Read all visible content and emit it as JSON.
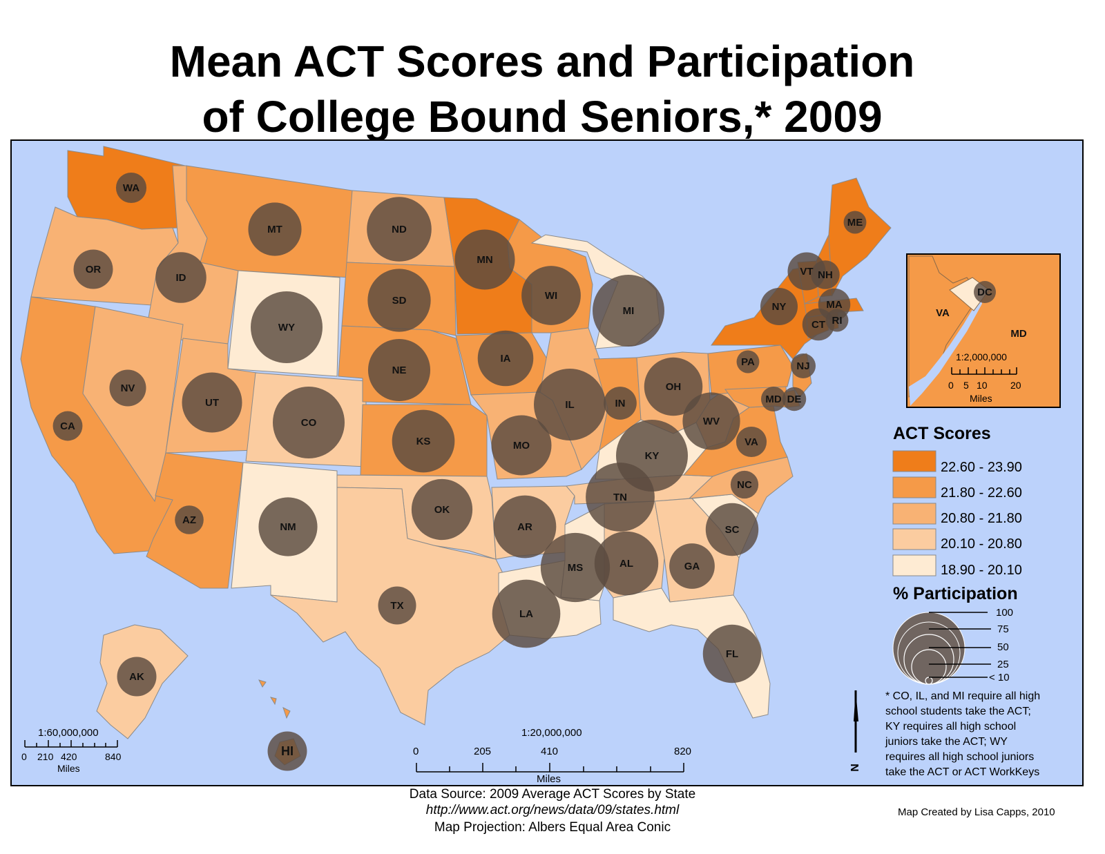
{
  "title_line1": "Mean ACT Scores and Participation",
  "title_line2": "of College Bound Seniors,* 2009",
  "colors": {
    "water": "#bcd2fb",
    "class1": "#ef7d1a",
    "class2": "#f59a48",
    "class3": "#f8b274",
    "class4": "#fbcca0",
    "class5": "#feebd3",
    "bubble": "#5a4a40"
  },
  "legend": {
    "scores_title": "ACT Scores",
    "classes": [
      "22.60 - 23.90",
      "21.80 - 22.60",
      "20.80 - 21.80",
      "20.10 - 20.80",
      "18.90 - 20.10"
    ],
    "participation_title": "% Participation",
    "participation_levels": [
      "100",
      "75",
      "50",
      "25",
      "< 10"
    ]
  },
  "note": [
    "* CO, IL, and MI require all high",
    "school students take the ACT;",
    "KY requires all high school",
    "juniors take the ACT; WY",
    "requires all high school juniors",
    "take the ACT or ACT WorkKeys"
  ],
  "inset_dc": {
    "labels": [
      "VA",
      "DC",
      "MD"
    ],
    "scale": "1:2,000,000",
    "ticks": [
      "0",
      "5",
      "10",
      "20"
    ],
    "units": "Miles"
  },
  "scale_main": {
    "scale": "1:20,000,000",
    "ticks": [
      "0",
      "205",
      "410",
      "820"
    ],
    "units": "Miles"
  },
  "scale_alaska": {
    "scale": "1:60,000,000",
    "ticks": [
      "0",
      "210",
      "420",
      "840"
    ],
    "units": "Miles"
  },
  "north_label": "N",
  "states": [
    {
      "abbr": "WA",
      "score_class": 1,
      "participation": 18
    },
    {
      "abbr": "OR",
      "score_class": 3,
      "participation": 30
    },
    {
      "abbr": "CA",
      "score_class": 2,
      "participation": 17
    },
    {
      "abbr": "ID",
      "score_class": 3,
      "participation": 50
    },
    {
      "abbr": "NV",
      "score_class": 3,
      "participation": 26
    },
    {
      "abbr": "MT",
      "score_class": 2,
      "participation": 55
    },
    {
      "abbr": "WY",
      "score_class": 5,
      "participation": 100
    },
    {
      "abbr": "UT",
      "score_class": 3,
      "participation": 70
    },
    {
      "abbr": "AZ",
      "score_class": 2,
      "participation": 16
    },
    {
      "abbr": "CO",
      "score_class": 4,
      "participation": 100
    },
    {
      "abbr": "NM",
      "score_class": 5,
      "participation": 67
    },
    {
      "abbr": "ND",
      "score_class": 3,
      "participation": 81
    },
    {
      "abbr": "SD",
      "score_class": 2,
      "participation": 77
    },
    {
      "abbr": "NE",
      "score_class": 2,
      "participation": 75
    },
    {
      "abbr": "KS",
      "score_class": 2,
      "participation": 76
    },
    {
      "abbr": "OK",
      "score_class": 4,
      "participation": 72
    },
    {
      "abbr": "TX",
      "score_class": 4,
      "participation": 28
    },
    {
      "abbr": "MN",
      "score_class": 1,
      "participation": 70
    },
    {
      "abbr": "IA",
      "score_class": 2,
      "participation": 60
    },
    {
      "abbr": "MO",
      "score_class": 3,
      "participation": 70
    },
    {
      "abbr": "AR",
      "score_class": 4,
      "participation": 76
    },
    {
      "abbr": "LA",
      "score_class": 5,
      "participation": 90
    },
    {
      "abbr": "WI",
      "score_class": 2,
      "participation": 68
    },
    {
      "abbr": "IL",
      "score_class": 3,
      "participation": 100
    },
    {
      "abbr": "MS",
      "score_class": 5,
      "participation": 93
    },
    {
      "abbr": "MI",
      "score_class": 5,
      "participation": 100
    },
    {
      "abbr": "IN",
      "score_class": 2,
      "participation": 21
    },
    {
      "abbr": "KY",
      "score_class": 5,
      "participation": 100
    },
    {
      "abbr": "TN",
      "score_class": 4,
      "participation": 92
    },
    {
      "abbr": "AL",
      "score_class": 4,
      "participation": 79
    },
    {
      "abbr": "OH",
      "score_class": 3,
      "participation": 66
    },
    {
      "abbr": "GA",
      "score_class": 4,
      "participation": 40
    },
    {
      "abbr": "FL",
      "score_class": 5,
      "participation": 66
    },
    {
      "abbr": "SC",
      "score_class": 5,
      "participation": 54
    },
    {
      "abbr": "NC",
      "score_class": 3,
      "participation": 15
    },
    {
      "abbr": "VA",
      "score_class": 2,
      "participation": 18
    },
    {
      "abbr": "WV",
      "score_class": 3,
      "participation": 64
    },
    {
      "abbr": "PA",
      "score_class": 2,
      "participation": 10
    },
    {
      "abbr": "NY",
      "score_class": 1,
      "participation": 27
    },
    {
      "abbr": "NJ",
      "score_class": 2,
      "participation": 12
    },
    {
      "abbr": "DE",
      "score_class": 2,
      "participation": 11
    },
    {
      "abbr": "MD",
      "score_class": 2,
      "participation": 12
    },
    {
      "abbr": "CT",
      "score_class": 1,
      "participation": 20
    },
    {
      "abbr": "RI",
      "score_class": 1,
      "participation": 10
    },
    {
      "abbr": "MA",
      "score_class": 1,
      "participation": 20
    },
    {
      "abbr": "VT",
      "score_class": 1,
      "participation": 28
    },
    {
      "abbr": "NH",
      "score_class": 1,
      "participation": 16
    },
    {
      "abbr": "ME",
      "score_class": 1,
      "participation": 10
    },
    {
      "abbr": "AK",
      "score_class": 4,
      "participation": 30
    },
    {
      "abbr": "HI",
      "score_class": 2,
      "participation": 30
    },
    {
      "abbr": "DC",
      "score_class": 5,
      "participation": 30
    }
  ],
  "footer": {
    "source": "Data Source:  2009 Average ACT Scores by State",
    "url": "http://www.act.org/news/data/09/states.html",
    "projection": "Map Projection: Albers Equal Area Conic",
    "credit": "Map Created by Lisa Capps, 2010"
  }
}
